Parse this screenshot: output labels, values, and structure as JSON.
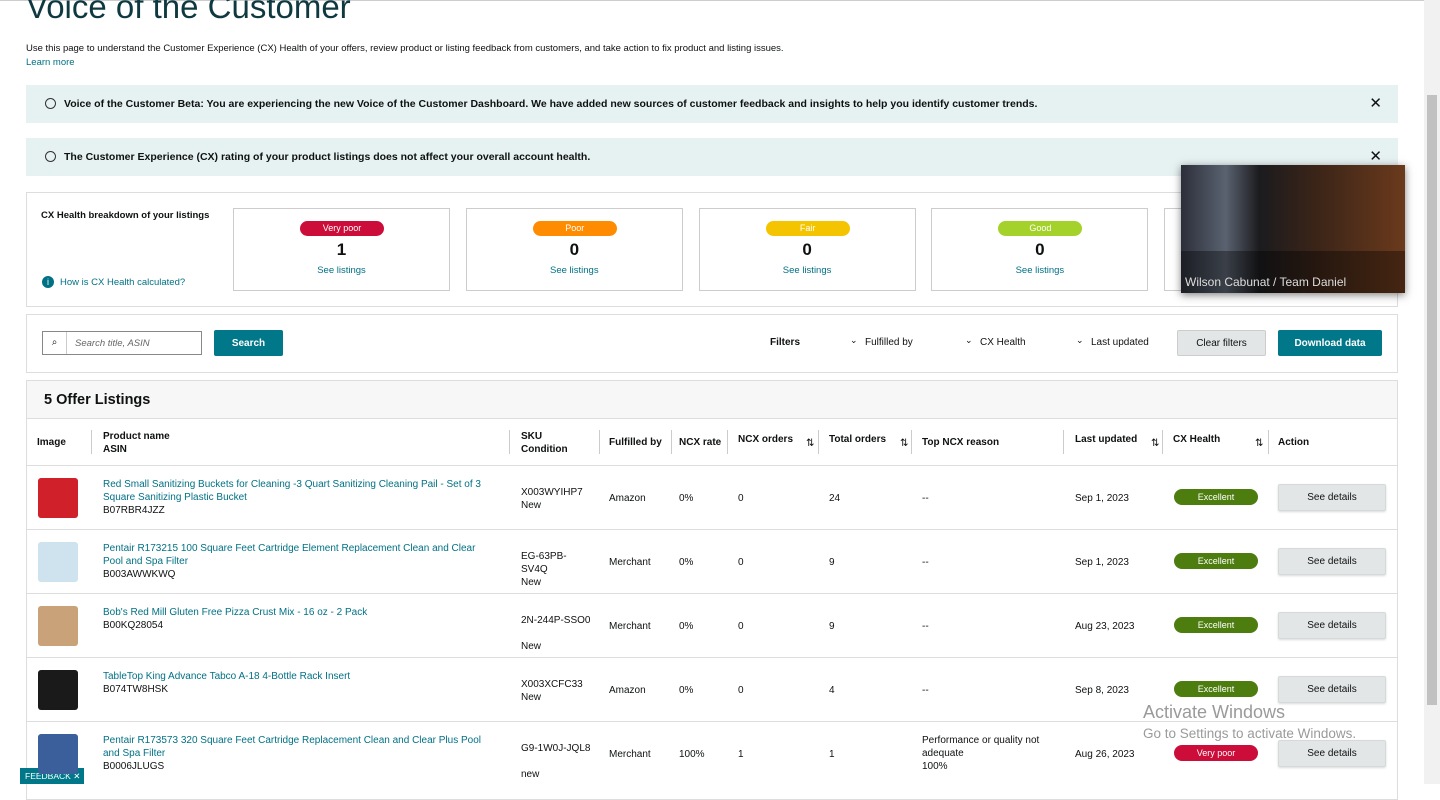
{
  "header": {
    "title": "Voice of the Customer",
    "description": "Use this page to understand the Customer Experience (CX) Health of your offers, review product or listing feedback from customers, and take action to fix product and listing issues.",
    "learn_more": "Learn more"
  },
  "banners": [
    {
      "text": "Voice of the Customer Beta: You are experiencing the new Voice of the Customer Dashboard. We have added new sources of customer feedback and insights to help you identify customer trends."
    },
    {
      "text": "The Customer Experience (CX) rating of your product listings does not affect your overall account health."
    }
  ],
  "cx_health": {
    "title": "CX Health breakdown of your listings",
    "help": "How is CX Health calculated?",
    "cards": [
      {
        "badge": "Very poor",
        "color": "#cc0c39",
        "count": 1,
        "link": "See listings"
      },
      {
        "badge": "Poor",
        "color": "#ff8c00",
        "count": 0,
        "link": "See listings"
      },
      {
        "badge": "Fair",
        "color": "#f5c400",
        "count": 0,
        "link": "See listings"
      },
      {
        "badge": "Good",
        "color": "#a4d22a",
        "count": 0,
        "link": "See listings"
      }
    ]
  },
  "video": {
    "caption": "Wilson Cabunat / Team Daniel"
  },
  "toolbar": {
    "search_placeholder": "Search title, ASIN",
    "search_button": "Search",
    "filters_label": "Filters",
    "filters": [
      "Fulfilled by",
      "CX Health",
      "Last updated"
    ],
    "clear": "Clear filters",
    "download": "Download data"
  },
  "listings": {
    "title": "5 Offer Listings",
    "columns": {
      "image": "Image",
      "product_name": "Product name",
      "asin": "ASIN",
      "sku": "SKU",
      "condition": "Condition",
      "fulfilled_by": "Fulfilled by",
      "ncx_rate": "NCX rate",
      "ncx_orders": "NCX orders",
      "total_orders": "Total orders",
      "top_reason": "Top NCX reason",
      "last_updated": "Last updated",
      "cx_health": "CX Health",
      "action": "Action"
    },
    "rows": [
      {
        "name": "Red Small Sanitizing Buckets for Cleaning -3 Quart Sanitizing Cleaning Pail - Set of 3 Square Sanitizing Plastic Bucket",
        "asin": "B07RBR4JZZ",
        "sku": "X003WYIHP7",
        "condition": "New",
        "fulfilled_by": "Amazon",
        "ncx_rate": "0%",
        "ncx_orders": 0,
        "total_orders": 24,
        "top_reason": "--",
        "last_updated": "Sep 1, 2023",
        "cx_health": "Excellent",
        "health_color": "#4d7c0f",
        "action": "See details",
        "image_color": "#d0202a"
      },
      {
        "name": "Pentair R173215 100 Square Feet Cartridge Element Replacement Clean and Clear Pool and Spa Filter",
        "asin": "B003AWWKWQ",
        "sku": "EG-63PB-SV4Q",
        "condition": "New",
        "fulfilled_by": "Merchant",
        "ncx_rate": "0%",
        "ncx_orders": 0,
        "total_orders": 9,
        "top_reason": "--",
        "last_updated": "Sep 1, 2023",
        "cx_health": "Excellent",
        "health_color": "#4d7c0f",
        "action": "See details",
        "image_color": "#cfe3ef"
      },
      {
        "name": "Bob's Red Mill Gluten Free Pizza Crust Mix - 16 oz - 2 Pack",
        "asin": "B00KQ28054",
        "sku": "2N-244P-SSO0",
        "condition": "New",
        "fulfilled_by": "Merchant",
        "ncx_rate": "0%",
        "ncx_orders": 0,
        "total_orders": 9,
        "top_reason": "--",
        "last_updated": "Aug 23, 2023",
        "cx_health": "Excellent",
        "health_color": "#4d7c0f",
        "action": "See details",
        "image_color": "#c9a27a"
      },
      {
        "name": "TableTop King Advance Tabco A-18 4-Bottle Rack Insert",
        "asin": "B074TW8HSK",
        "sku": "X003XCFC33",
        "condition": "New",
        "fulfilled_by": "Amazon",
        "ncx_rate": "0%",
        "ncx_orders": 0,
        "total_orders": 4,
        "top_reason": "--",
        "last_updated": "Sep 8, 2023",
        "cx_health": "Excellent",
        "health_color": "#4d7c0f",
        "action": "See details",
        "image_color": "#1a1a1a"
      },
      {
        "name": "Pentair R173573 320 Square Feet Cartridge Replacement Clean and Clear Plus Pool and Spa Filter",
        "asin": "B0006JLUGS",
        "sku": "G9-1W0J-JQL8",
        "condition": "new",
        "fulfilled_by": "Merchant",
        "ncx_rate": "100%",
        "ncx_orders": 1,
        "total_orders": 1,
        "top_reason": "Performance or quality not adequate",
        "top_reason_detail": "100%",
        "last_updated": "Aug 26, 2023",
        "cx_health": "Very poor",
        "health_color": "#cc0c39",
        "action": "See details",
        "image_color": "#3a5f9a"
      }
    ]
  },
  "watermark": {
    "line1": "Activate Windows",
    "line2": "Go to Settings to activate Windows."
  },
  "feedback": "FEEDBACK"
}
